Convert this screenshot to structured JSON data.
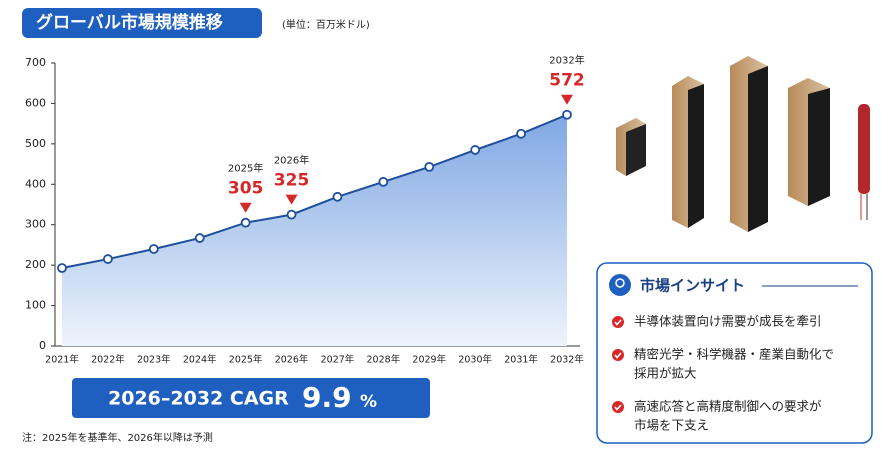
{
  "chart_data": {
    "type": "area-line",
    "title": "グローバル市場規模推移",
    "subtitle": "(単位：百万米ドル)",
    "categories": [
      "2021年",
      "2022年",
      "2023年",
      "2024年",
      "2025年",
      "2026年",
      "2027年",
      "2028年",
      "2029年",
      "2030年",
      "2031年",
      "2032年"
    ],
    "values": [
      193,
      215,
      240,
      267,
      305,
      325,
      369,
      406,
      443,
      485,
      525,
      572
    ],
    "value_labels": [
      null,
      null,
      null,
      null,
      "305",
      "325",
      null,
      null,
      null,
      null,
      null,
      "572"
    ],
    "color": "#1f4e9c",
    "label_color": "#d62828",
    "ylim": [
      0,
      700
    ],
    "yticks": [
      0,
      100,
      200,
      300,
      400,
      500,
      600,
      700
    ],
    "grid": false
  },
  "cagr": {
    "label": "2026–2032 CAGR",
    "value": "9.9",
    "unit": "%"
  },
  "note": "注：2025年を基準年、2026年以降は予測",
  "insight": {
    "title": "市場インサイト",
    "items": [
      [
        "半導体装置向け需要が成長を牽引"
      ],
      [
        "精密光学・科学機器・産業自動化で",
        "採用が拡大"
      ],
      [
        "高速応答と高精度制御への要求が",
        "市場を下支え"
      ]
    ]
  }
}
